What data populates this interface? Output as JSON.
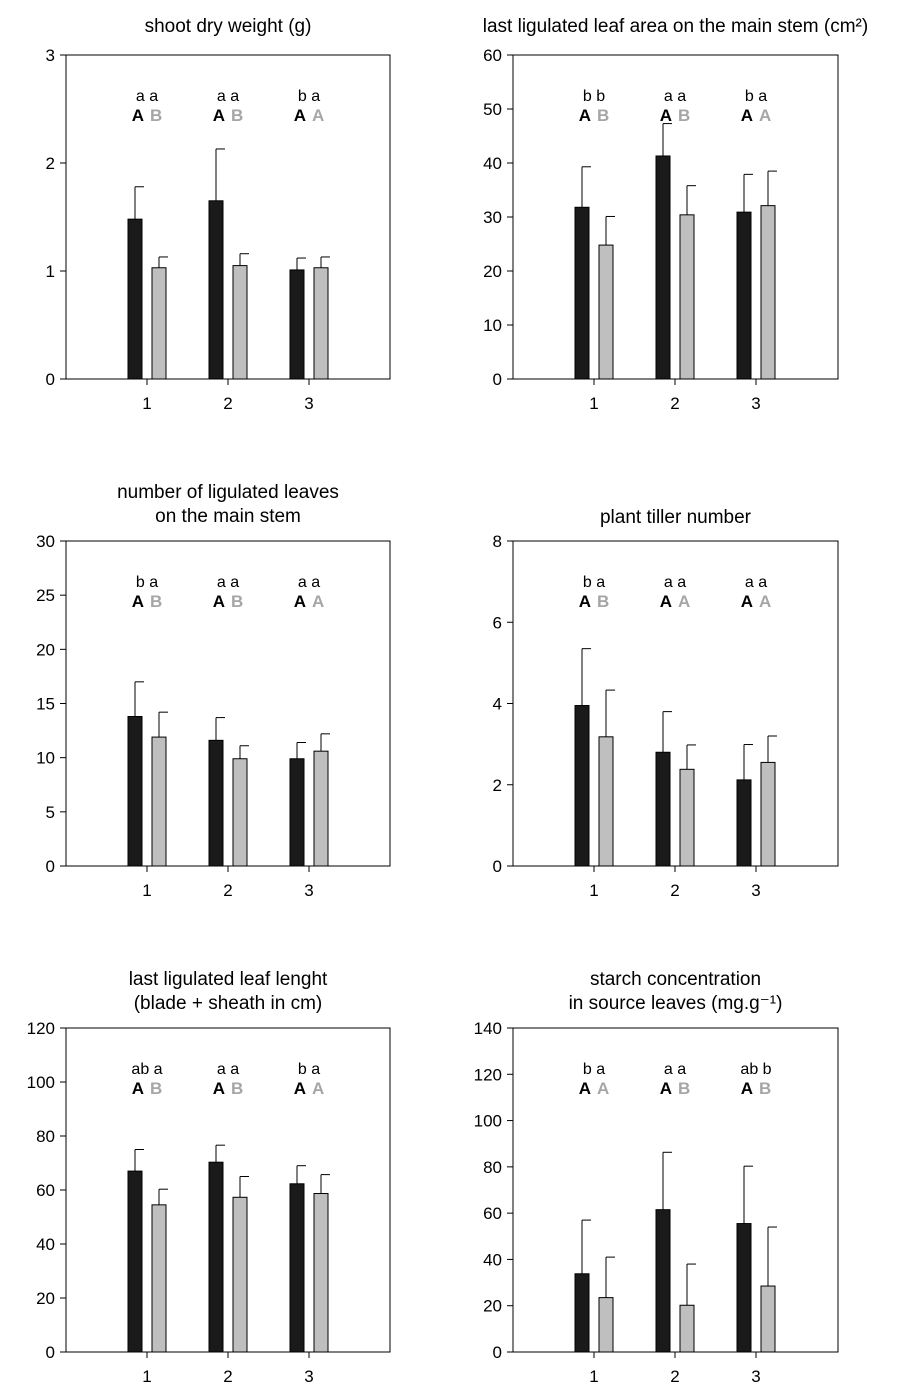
{
  "colors": {
    "series_a": "#1a1a1a",
    "series_b": "#bfbfbf",
    "letter_a": "#000000",
    "letter_b_gray": "#a6a6a6"
  },
  "chart_data": [
    {
      "type": "bar",
      "title_lines": [
        "shoot dry weight (g)"
      ],
      "categories": [
        "1",
        "2",
        "3"
      ],
      "ylim": [
        0,
        3
      ],
      "yticks": [
        0,
        1,
        2,
        3
      ],
      "series": [
        {
          "values": [
            1.48,
            1.65,
            1.01
          ],
          "errors": [
            0.3,
            0.48,
            0.11
          ]
        },
        {
          "values": [
            1.03,
            1.05,
            1.03
          ],
          "errors": [
            0.1,
            0.11,
            0.1
          ]
        }
      ],
      "annotations": [
        {
          "lower": "a a",
          "upper_a": "A",
          "upper_b": "B"
        },
        {
          "lower": "a a",
          "upper_a": "A",
          "upper_b": "B"
        },
        {
          "lower": "b a",
          "upper_a": "A",
          "upper_b": "A"
        }
      ]
    },
    {
      "type": "bar",
      "title_lines": [
        "last ligulated leaf area on the main stem (cm²)"
      ],
      "categories": [
        "1",
        "2",
        "3"
      ],
      "ylim": [
        0,
        60
      ],
      "yticks": [
        0,
        10,
        20,
        30,
        40,
        50,
        60
      ],
      "series": [
        {
          "values": [
            31.8,
            41.3,
            30.9
          ],
          "errors": [
            7.5,
            6.0,
            7.0
          ]
        },
        {
          "values": [
            24.8,
            30.4,
            32.1
          ],
          "errors": [
            5.3,
            5.4,
            6.4
          ]
        }
      ],
      "annotations": [
        {
          "lower": "b b",
          "upper_a": "A",
          "upper_b": "B"
        },
        {
          "lower": "a a",
          "upper_a": "A",
          "upper_b": "B"
        },
        {
          "lower": "b a",
          "upper_a": "A",
          "upper_b": "A"
        }
      ]
    },
    {
      "type": "bar",
      "title_lines": [
        "number of ligulated leaves",
        "on the main stem"
      ],
      "categories": [
        "1",
        "2",
        "3"
      ],
      "ylim": [
        0,
        30
      ],
      "yticks": [
        0,
        5,
        10,
        15,
        20,
        25,
        30
      ],
      "series": [
        {
          "values": [
            13.8,
            11.6,
            9.9
          ],
          "errors": [
            3.2,
            2.1,
            1.5
          ]
        },
        {
          "values": [
            11.9,
            9.9,
            10.6
          ],
          "errors": [
            2.3,
            1.2,
            1.6
          ]
        }
      ],
      "annotations": [
        {
          "lower": "b a",
          "upper_a": "A",
          "upper_b": "B"
        },
        {
          "lower": "a a",
          "upper_a": "A",
          "upper_b": "B"
        },
        {
          "lower": "a a",
          "upper_a": "A",
          "upper_b": "A"
        }
      ]
    },
    {
      "type": "bar",
      "title_lines": [
        "plant tiller number"
      ],
      "categories": [
        "1",
        "2",
        "3"
      ],
      "ylim": [
        0,
        8
      ],
      "yticks": [
        0,
        2,
        4,
        6,
        8
      ],
      "series": [
        {
          "values": [
            3.95,
            2.8,
            2.12
          ],
          "errors": [
            1.4,
            1.0,
            0.87
          ]
        },
        {
          "values": [
            3.18,
            2.38,
            2.55
          ],
          "errors": [
            1.15,
            0.6,
            0.65
          ]
        }
      ],
      "annotations": [
        {
          "lower": "b a",
          "upper_a": "A",
          "upper_b": "B"
        },
        {
          "lower": "a a",
          "upper_a": "A",
          "upper_b": "A"
        },
        {
          "lower": "a a",
          "upper_a": "A",
          "upper_b": "A"
        }
      ]
    },
    {
      "type": "bar",
      "title_lines": [
        "last ligulated leaf lenght",
        "(blade + sheath in cm)"
      ],
      "categories": [
        "1",
        "2",
        "3"
      ],
      "ylim": [
        0,
        120
      ],
      "yticks": [
        0,
        20,
        40,
        60,
        80,
        100,
        120
      ],
      "series": [
        {
          "values": [
            67,
            70.3,
            62.3
          ],
          "errors": [
            8,
            6.3,
            6.7
          ]
        },
        {
          "values": [
            54.5,
            57.3,
            58.7
          ],
          "errors": [
            5.8,
            7.7,
            7
          ]
        }
      ],
      "annotations": [
        {
          "lower": "ab a",
          "upper_a": "A",
          "upper_b": "B"
        },
        {
          "lower": "a a",
          "upper_a": "A",
          "upper_b": "B"
        },
        {
          "lower": "b a",
          "upper_a": "A",
          "upper_b": "A"
        }
      ]
    },
    {
      "type": "bar",
      "title_lines": [
        "starch concentration",
        "in source leaves (mg.g⁻¹)"
      ],
      "categories": [
        "1",
        "2",
        "3"
      ],
      "ylim": [
        0,
        140
      ],
      "yticks": [
        0,
        20,
        40,
        60,
        80,
        100,
        120,
        140
      ],
      "series": [
        {
          "values": [
            33.8,
            61.5,
            55.5
          ],
          "errors": [
            23.2,
            24.8,
            24.8
          ]
        },
        {
          "values": [
            23.5,
            20.2,
            28.5
          ],
          "errors": [
            17.5,
            17.8,
            25.5
          ]
        }
      ],
      "annotations": [
        {
          "lower": "b a",
          "upper_a": "A",
          "upper_b": "A"
        },
        {
          "lower": "a a",
          "upper_a": "A",
          "upper_b": "B"
        },
        {
          "lower": "ab b",
          "upper_a": "A",
          "upper_b": "B"
        }
      ]
    }
  ]
}
